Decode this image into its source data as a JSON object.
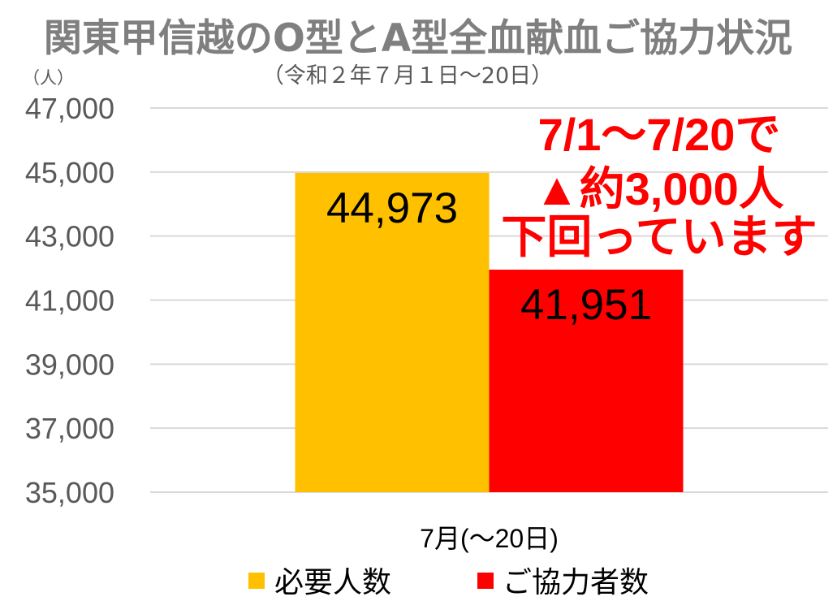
{
  "chart_data": {
    "type": "bar",
    "title": "関東甲信越のO型とA型全血献血ご協力状況",
    "subtitle": "（令和２年７月１日～20日）",
    "ylabel": "（人）",
    "categories": [
      "7月(～20日)"
    ],
    "series": [
      {
        "name": "必要人数",
        "color": "#FFC000",
        "values": [
          44973
        ],
        "labels": [
          "44,973"
        ]
      },
      {
        "name": "ご協力者数",
        "color": "#FF0000",
        "values": [
          41951
        ],
        "labels": [
          "41,951"
        ]
      }
    ],
    "ylim": [
      35000,
      47000
    ],
    "yticks": [
      35000,
      37000,
      39000,
      41000,
      43000,
      45000,
      47000
    ],
    "ytick_labels": [
      "35,000",
      "37,000",
      "39,000",
      "41,000",
      "43,000",
      "45,000",
      "47,000"
    ],
    "grid": true,
    "legend": "bottom",
    "annotation": {
      "lines": [
        "7/1～7/20で",
        "▲約3,000人",
        "下回っています"
      ],
      "color": "#FF0000"
    },
    "colors": {
      "title": "#7F7F7F",
      "axis_text": "#595959",
      "grid": "#D9D9D9"
    }
  }
}
